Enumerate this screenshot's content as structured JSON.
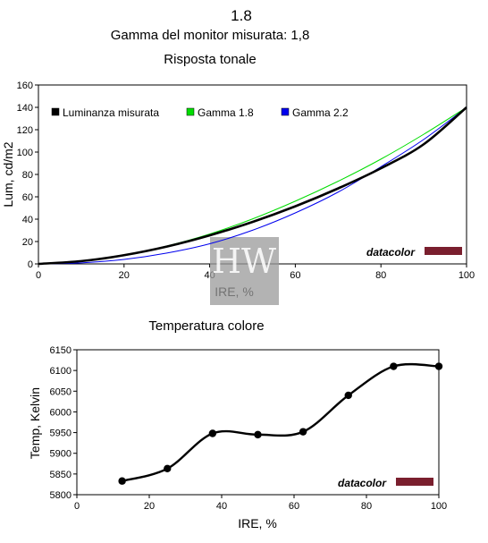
{
  "header": {
    "value": "1.8",
    "subtitle": "Gamma del monitor misurata: 1,8"
  },
  "watermark": {
    "text": "HW"
  },
  "chart_data": [
    {
      "type": "line",
      "title": "Risposta tonale",
      "xlabel": "IRE, %",
      "ylabel": "Lum, cd/m2",
      "xlim": [
        0,
        100
      ],
      "ylim": [
        0,
        160
      ],
      "xticks": [
        0,
        20,
        40,
        60,
        80,
        100
      ],
      "yticks": [
        0,
        20,
        40,
        60,
        80,
        100,
        120,
        140,
        160
      ],
      "grid": false,
      "legend_position": "top-left",
      "brand": "datacolor",
      "series": [
        {
          "name": "Luminanza misurata",
          "color": "#000000",
          "x": [
            0,
            10,
            20,
            30,
            40,
            50,
            60,
            70,
            80,
            90,
            100
          ],
          "y": [
            0,
            2.5,
            7.8,
            15.5,
            25.5,
            37.5,
            51.5,
            67.5,
            85.5,
            107,
            140
          ]
        },
        {
          "name": "Gamma 1.8",
          "color": "#00dd00",
          "x": [
            0,
            10,
            20,
            30,
            40,
            50,
            60,
            70,
            80,
            90,
            100
          ],
          "y": [
            0,
            2.2,
            7.6,
            16.0,
            26.7,
            40.2,
            56.1,
            73.9,
            93.7,
            115.9,
            140
          ]
        },
        {
          "name": "Gamma 2.2",
          "color": "#0000ee",
          "x": [
            0,
            10,
            20,
            30,
            40,
            50,
            60,
            70,
            80,
            90,
            100
          ],
          "y": [
            0,
            0.9,
            4.0,
            9.7,
            18.0,
            30.1,
            45.6,
            64.2,
            86.9,
            111.3,
            140
          ]
        }
      ]
    },
    {
      "type": "line",
      "title": "Temperatura colore",
      "xlabel": "IRE, %",
      "ylabel": "Temp, Kelvin",
      "xlim": [
        0,
        100
      ],
      "ylim": [
        5800,
        6150
      ],
      "xticks": [
        0,
        20,
        40,
        60,
        80,
        100
      ],
      "yticks": [
        5800,
        5850,
        5900,
        5950,
        6000,
        6050,
        6100,
        6150
      ],
      "grid": false,
      "brand": "datacolor",
      "series": [
        {
          "color": "#000000",
          "x": [
            12.5,
            25,
            37.5,
            50,
            62.5,
            75,
            87.5,
            100
          ],
          "y": [
            5833,
            5863,
            5948,
            5945,
            5952,
            6040,
            6110,
            6110
          ]
        }
      ]
    }
  ]
}
